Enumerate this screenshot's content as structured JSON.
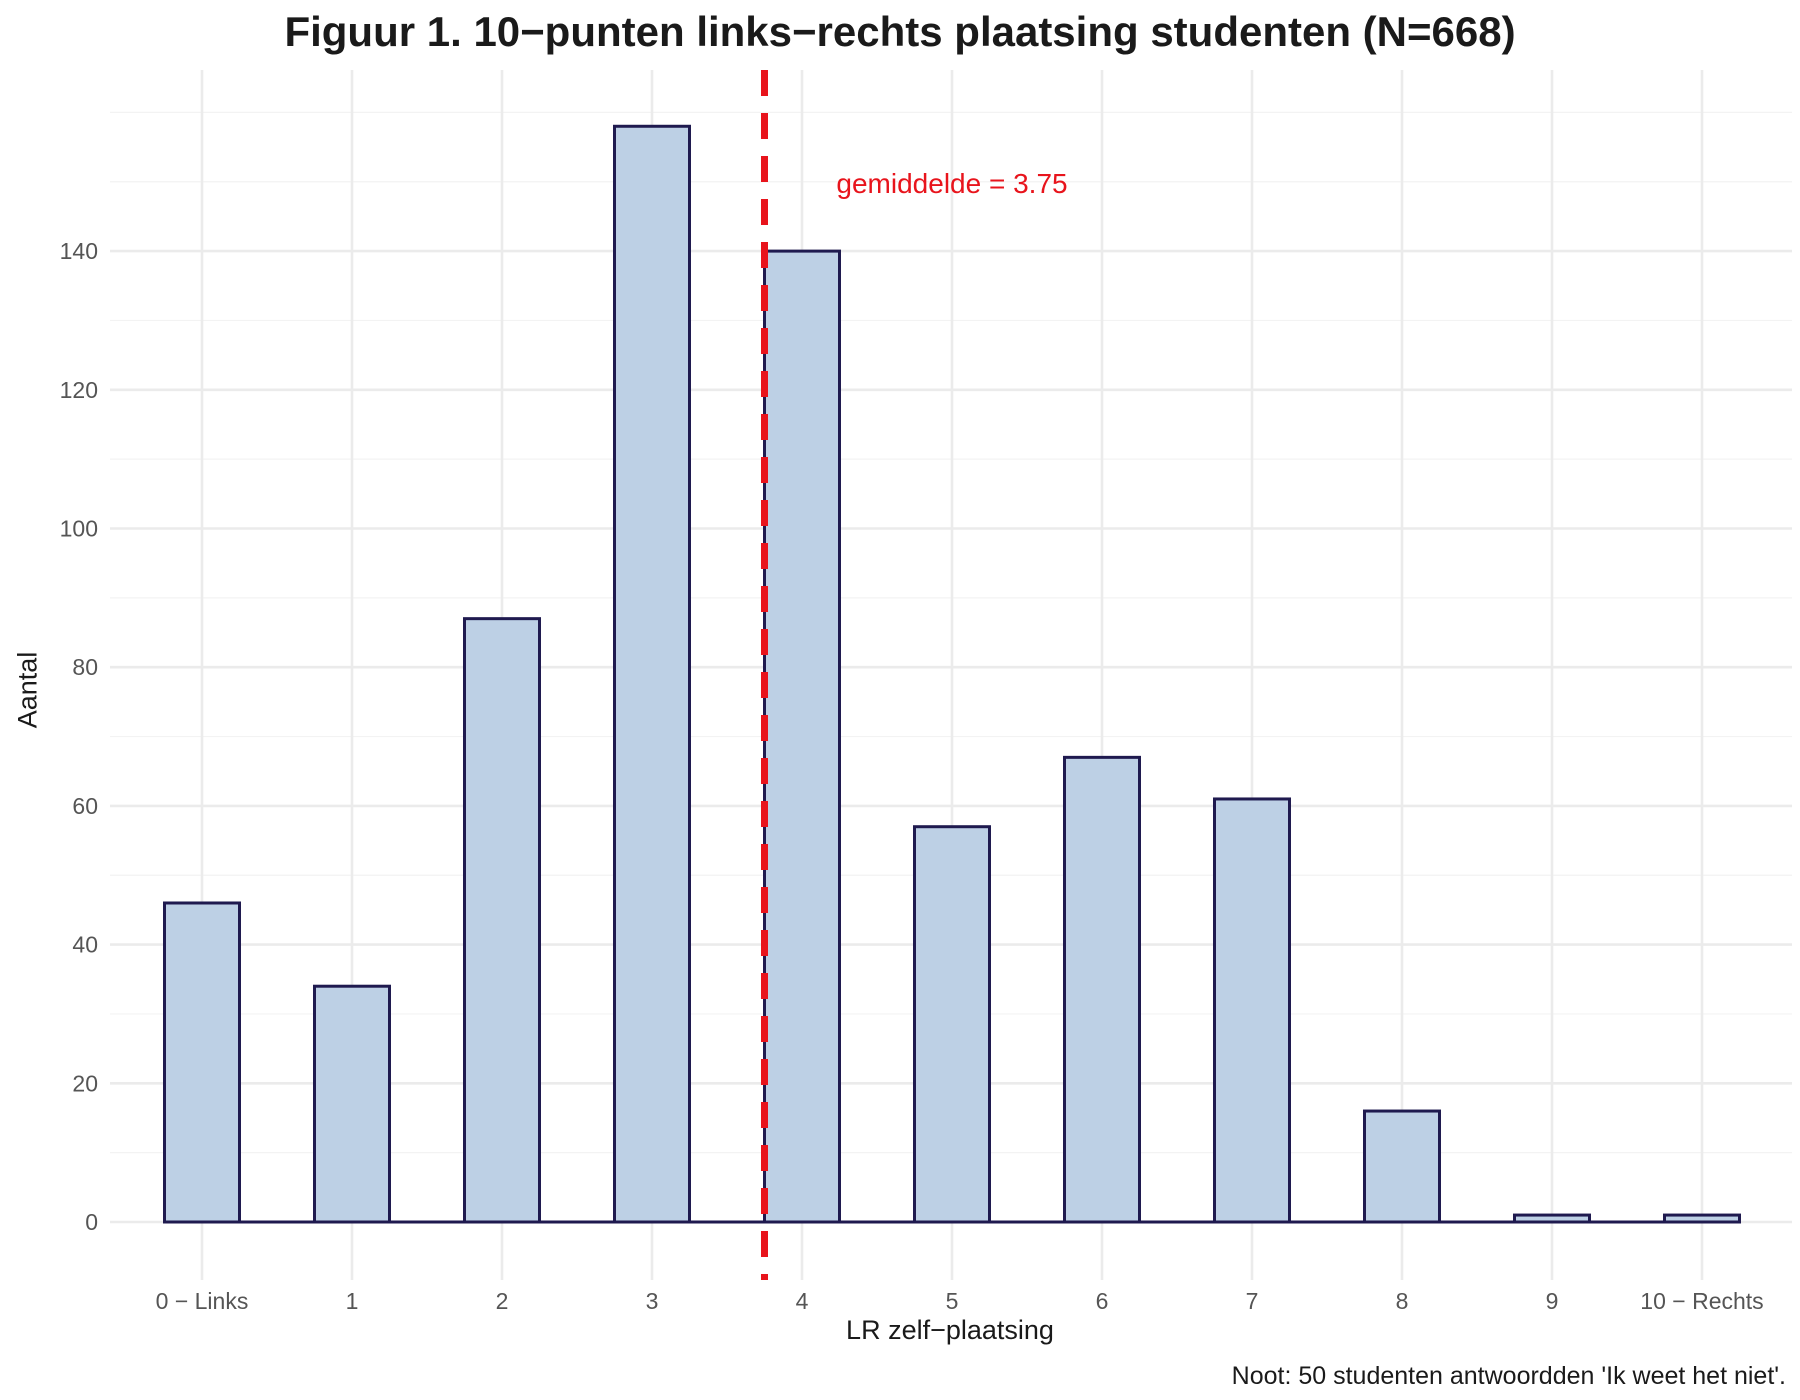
{
  "chart_data": {
    "type": "bar",
    "title": "Figuur 1. 10−punten links−rechts plaatsing studenten (N=668)",
    "xlabel": "LR zelf−plaatsing",
    "ylabel": "Aantal",
    "categories": [
      "0 − Links",
      "1",
      "2",
      "3",
      "4",
      "5",
      "6",
      "7",
      "8",
      "9",
      "10 − Rechts"
    ],
    "values": [
      46,
      34,
      87,
      158,
      140,
      57,
      67,
      61,
      16,
      1,
      1
    ],
    "ylim": [
      0,
      165
    ],
    "yticks": [
      0,
      20,
      40,
      60,
      80,
      100,
      120,
      140
    ],
    "grid": true,
    "mean_line": {
      "value": 3.75,
      "label": "gemiddelde = 3.75",
      "color": "#e8141c",
      "style": "dashed"
    },
    "bar_fill": "#bdd0e5",
    "bar_stroke": "#1f1a4f",
    "note": "Noot: 50 studenten antwoordden 'Ik weet het niet'."
  }
}
